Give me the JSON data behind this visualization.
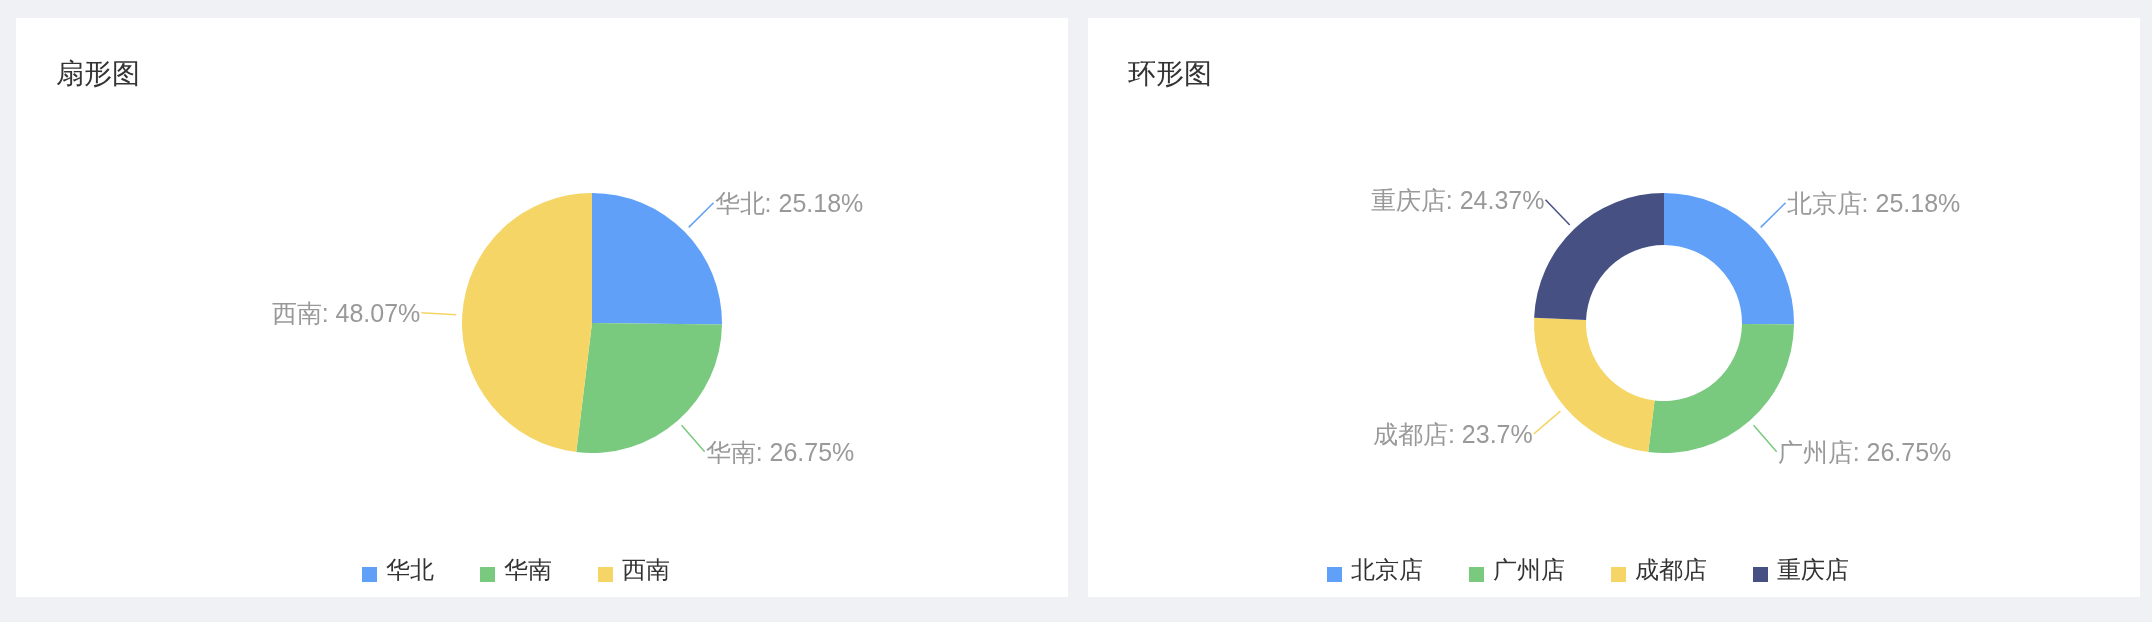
{
  "chart_data": [
    {
      "type": "pie",
      "title": "扇形图",
      "categories": [
        "华北",
        "华南",
        "西南"
      ],
      "values": [
        25.18,
        26.75,
        48.07
      ],
      "colors": [
        "#61a0f8",
        "#79c97e",
        "#f4d565"
      ],
      "value_labels": [
        "华北: 25.18%",
        "华南: 26.75%",
        "西南: 48.07%"
      ],
      "legend": "bottom"
    },
    {
      "type": "donut",
      "title": "环形图",
      "categories": [
        "北京店",
        "广州店",
        "成都店",
        "重庆店"
      ],
      "values": [
        25.18,
        26.75,
        23.7,
        24.37
      ],
      "colors": [
        "#61a0f8",
        "#79c97e",
        "#f4d565",
        "#465083"
      ],
      "value_labels": [
        "北京店: 25.18%",
        "广州店: 26.75%",
        "成都店: 23.7%",
        "重庆店: 24.37%"
      ],
      "legend": "bottom"
    }
  ]
}
